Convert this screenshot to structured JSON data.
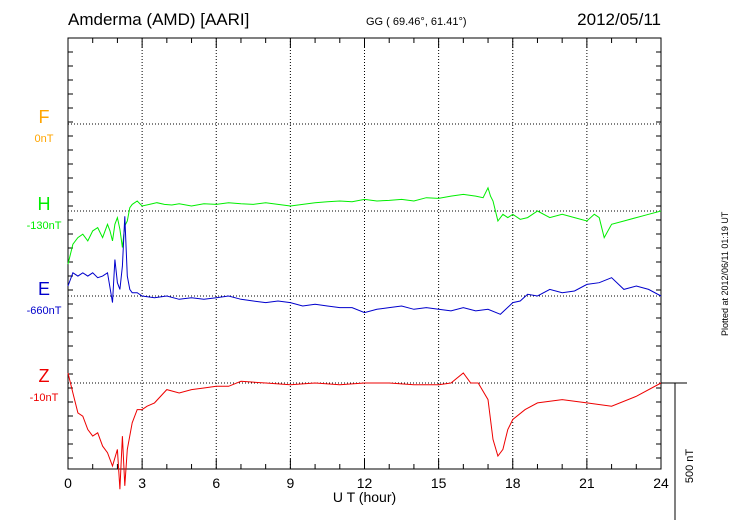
{
  "header": {
    "station": "Amderma (AMD)  [AARI]",
    "coords": "GG ( 69.46°,  61.41°)",
    "date": "2012/05/11"
  },
  "plotted": "Plotted at 2012/06/11 01:19 UT",
  "chart_data": {
    "type": "line",
    "xlabel": "U T (hour)",
    "xlim": [
      0,
      24
    ],
    "xticks": [
      0,
      3,
      6,
      9,
      12,
      15,
      18,
      21,
      24
    ],
    "scale_bar": "500 nT",
    "scale_bar_nT": 500,
    "grid": true,
    "series": [
      {
        "name": "F",
        "baseline_label": "0nT",
        "color": "#ffa500",
        "x": [],
        "y": []
      },
      {
        "name": "H",
        "baseline_label": "-130nT",
        "color": "#00ee00",
        "x": [
          0,
          0.2,
          0.4,
          0.6,
          0.8,
          1.0,
          1.2,
          1.4,
          1.6,
          1.7,
          1.8,
          1.9,
          2.0,
          2.1,
          2.2,
          2.3,
          2.4,
          2.5,
          2.6,
          2.8,
          3.0,
          3.3,
          3.6,
          3.9,
          4.2,
          4.5,
          5.0,
          5.5,
          6.0,
          6.5,
          7.0,
          7.5,
          8.0,
          8.5,
          9.0,
          9.5,
          10.0,
          10.5,
          11.0,
          11.5,
          12.0,
          12.5,
          13.0,
          13.5,
          14.0,
          14.5,
          15.0,
          15.5,
          16.0,
          16.5,
          16.8,
          17.0,
          17.1,
          17.2,
          17.4,
          17.6,
          17.8,
          18.0,
          18.3,
          18.6,
          19.0,
          19.5,
          20.0,
          20.5,
          21.0,
          21.3,
          21.5,
          21.7,
          22.0,
          22.5,
          23.0,
          23.5,
          24.0
        ],
        "y": [
          -160,
          -100,
          -80,
          -70,
          -90,
          -60,
          -50,
          -80,
          -40,
          -60,
          -90,
          -40,
          -20,
          -55,
          -110,
          -45,
          -30,
          10,
          20,
          30,
          15,
          20,
          25,
          20,
          18,
          22,
          15,
          22,
          20,
          25,
          22,
          20,
          25,
          20,
          15,
          20,
          25,
          28,
          30,
          28,
          35,
          30,
          32,
          35,
          30,
          40,
          38,
          45,
          50,
          45,
          40,
          70,
          45,
          30,
          -30,
          -10,
          -20,
          -10,
          -25,
          -20,
          0,
          -20,
          -10,
          -20,
          -30,
          -10,
          -20,
          -80,
          -40,
          -30,
          -20,
          -10,
          0
        ]
      },
      {
        "name": "E",
        "baseline_label": "-660nT",
        "color": "#0000cc",
        "x": [
          0,
          0.2,
          0.4,
          0.6,
          0.8,
          1.0,
          1.2,
          1.4,
          1.6,
          1.8,
          1.9,
          2.0,
          2.1,
          2.2,
          2.3,
          2.4,
          2.5,
          2.6,
          2.8,
          3.0,
          3.5,
          4.0,
          4.5,
          5.0,
          5.5,
          6.0,
          6.5,
          7.0,
          7.5,
          8.0,
          8.5,
          9.0,
          9.5,
          10.0,
          10.5,
          11.0,
          11.5,
          12.0,
          12.5,
          13.0,
          13.5,
          14.0,
          14.5,
          15.0,
          15.5,
          16.0,
          16.5,
          17.0,
          17.5,
          18.0,
          18.3,
          18.6,
          19.0,
          19.5,
          20.0,
          20.5,
          21.0,
          21.5,
          22.0,
          22.5,
          23.0,
          23.5,
          24.0
        ],
        "y": [
          30,
          70,
          60,
          70,
          60,
          70,
          55,
          60,
          70,
          -20,
          110,
          40,
          20,
          90,
          240,
          60,
          20,
          10,
          10,
          0,
          -5,
          0,
          -10,
          -5,
          -10,
          -5,
          0,
          -10,
          -15,
          -20,
          -15,
          -20,
          -30,
          -25,
          -30,
          -35,
          -35,
          -50,
          -40,
          -35,
          -30,
          -40,
          -35,
          -40,
          -45,
          -35,
          -45,
          -40,
          -55,
          -20,
          -15,
          5,
          0,
          20,
          10,
          15,
          35,
          40,
          55,
          20,
          30,
          20,
          0
        ]
      },
      {
        "name": "Z",
        "baseline_label": "-10nT",
        "color": "#ee0000",
        "x": [
          0,
          0.2,
          0.4,
          0.6,
          0.8,
          1.0,
          1.2,
          1.4,
          1.6,
          1.8,
          2.0,
          2.1,
          2.2,
          2.3,
          2.4,
          2.6,
          2.8,
          3.0,
          3.2,
          3.5,
          4.0,
          4.5,
          5.0,
          5.5,
          6.0,
          6.5,
          7.0,
          8.0,
          9.0,
          10.0,
          11.0,
          12.0,
          13.0,
          14.0,
          15.0,
          15.5,
          16.0,
          16.3,
          16.6,
          17.0,
          17.2,
          17.4,
          17.6,
          17.8,
          18.0,
          18.5,
          19.0,
          20.0,
          21.0,
          22.0,
          23.0,
          24.0
        ],
        "y": [
          30,
          -30,
          -90,
          -100,
          -140,
          -160,
          -150,
          -190,
          -210,
          -250,
          -200,
          -320,
          -160,
          -310,
          -200,
          -120,
          -80,
          -80,
          -70,
          -60,
          -20,
          -30,
          -20,
          -15,
          -10,
          -10,
          5,
          0,
          -5,
          0,
          -5,
          0,
          0,
          -5,
          -5,
          0,
          30,
          0,
          0,
          -50,
          -170,
          -220,
          -200,
          -140,
          -110,
          -80,
          -60,
          -50,
          -60,
          -70,
          -40,
          0
        ]
      }
    ]
  }
}
